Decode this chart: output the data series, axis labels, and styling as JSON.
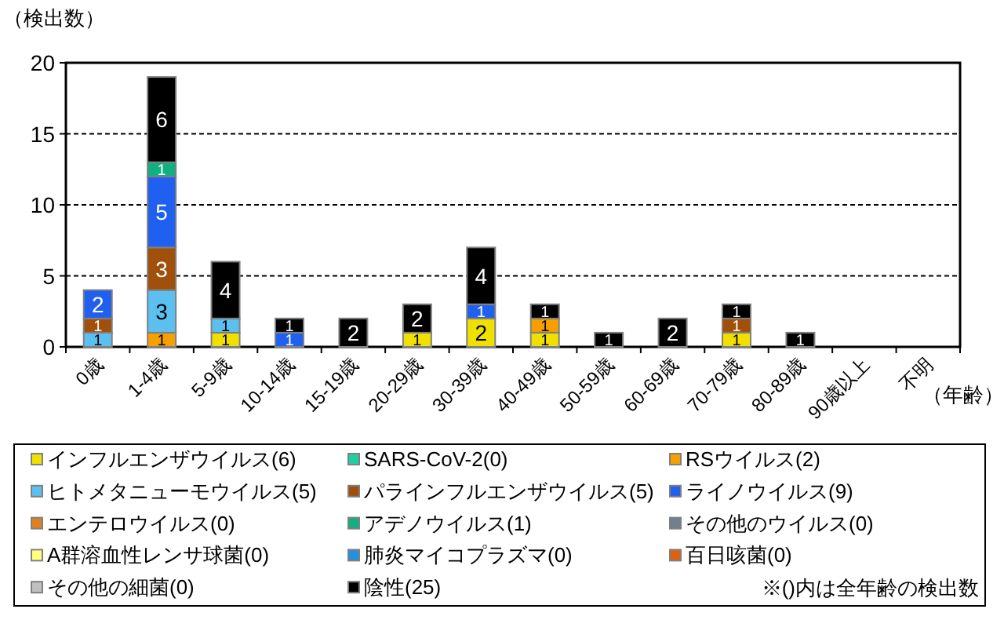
{
  "chart_data": {
    "type": "bar",
    "stacked": true,
    "ylabel": "（検出数）",
    "xlabel": "（年齢）",
    "categories": [
      "0歳",
      "1-4歳",
      "5-9歳",
      "10-14歳",
      "15-19歳",
      "20-29歳",
      "30-39歳",
      "40-49歳",
      "50-59歳",
      "60-69歳",
      "70-79歳",
      "80-89歳",
      "90歳以上",
      "不明"
    ],
    "series": [
      {
        "name": "インフルエンザウイルス(6)",
        "color": "#f0e000",
        "values": [
          0,
          0,
          1,
          0,
          0,
          1,
          2,
          1,
          0,
          0,
          1,
          0,
          0,
          0
        ],
        "value_labels": [
          null,
          null,
          "1",
          null,
          null,
          "1",
          "2",
          "1",
          null,
          null,
          "1",
          null,
          null,
          null
        ]
      },
      {
        "name": "SARS-CoV-2(0)",
        "color": "#20d0a0",
        "values": [
          0,
          0,
          0,
          0,
          0,
          0,
          0,
          0,
          0,
          0,
          0,
          0,
          0,
          0
        ]
      },
      {
        "name": "RSウイルス(2)",
        "color": "#f5a000",
        "values": [
          0,
          1,
          0,
          0,
          0,
          0,
          0,
          1,
          0,
          0,
          0,
          0,
          0,
          0
        ],
        "value_labels": [
          null,
          "1",
          null,
          null,
          null,
          null,
          null,
          "1",
          null,
          null,
          null,
          null,
          null,
          null
        ]
      },
      {
        "name": "ヒトメタニューモウイルス(5)",
        "color": "#5bc0f0",
        "values": [
          1,
          3,
          1,
          0,
          0,
          0,
          0,
          0,
          0,
          0,
          0,
          0,
          0,
          0
        ],
        "value_labels": [
          "1",
          "3",
          "1",
          null,
          null,
          null,
          null,
          null,
          null,
          null,
          null,
          null,
          null,
          null
        ]
      },
      {
        "name": "パラインフルエンザウイルス(5)",
        "color": "#a0500a",
        "values": [
          1,
          3,
          0,
          0,
          0,
          0,
          0,
          0,
          0,
          0,
          1,
          0,
          0,
          0
        ],
        "value_labels": [
          "1",
          "3",
          null,
          null,
          null,
          null,
          null,
          null,
          null,
          null,
          "1",
          null,
          null,
          null
        ]
      },
      {
        "name": "ライノウイルス(9)",
        "color": "#2060f0",
        "values": [
          2,
          5,
          0,
          1,
          0,
          0,
          1,
          0,
          0,
          0,
          0,
          0,
          0,
          0
        ],
        "value_labels": [
          "2",
          "5",
          null,
          "1",
          null,
          null,
          "1",
          null,
          null,
          null,
          null,
          null,
          null,
          null
        ]
      },
      {
        "name": "エンテロウイルス(0)",
        "color": "#e08020",
        "values": [
          0,
          0,
          0,
          0,
          0,
          0,
          0,
          0,
          0,
          0,
          0,
          0,
          0,
          0
        ]
      },
      {
        "name": "アデノウイルス(1)",
        "color": "#10b080",
        "values": [
          0,
          1,
          0,
          0,
          0,
          0,
          0,
          0,
          0,
          0,
          0,
          0,
          0,
          0
        ],
        "value_labels": [
          null,
          "1",
          null,
          null,
          null,
          null,
          null,
          null,
          null,
          null,
          null,
          null,
          null,
          null
        ]
      },
      {
        "name": "その他のウイルス(0)",
        "color": "#708090",
        "values": [
          0,
          0,
          0,
          0,
          0,
          0,
          0,
          0,
          0,
          0,
          0,
          0,
          0,
          0
        ]
      },
      {
        "name": "A群溶血性レンサ球菌(0)",
        "color": "#ffff80",
        "values": [
          0,
          0,
          0,
          0,
          0,
          0,
          0,
          0,
          0,
          0,
          0,
          0,
          0,
          0
        ]
      },
      {
        "name": "肺炎マイコプラズマ(0)",
        "color": "#2090e0",
        "values": [
          0,
          0,
          0,
          0,
          0,
          0,
          0,
          0,
          0,
          0,
          0,
          0,
          0,
          0
        ]
      },
      {
        "name": "百日咳菌(0)",
        "color": "#e06010",
        "values": [
          0,
          0,
          0,
          0,
          0,
          0,
          0,
          0,
          0,
          0,
          0,
          0,
          0,
          0
        ]
      },
      {
        "name": "その他の細菌(0)",
        "color": "#c0c0c0",
        "values": [
          0,
          0,
          0,
          0,
          0,
          0,
          0,
          0,
          0,
          0,
          0,
          0,
          0,
          0
        ]
      },
      {
        "name": "陰性(25)",
        "color": "#000000",
        "values": [
          0,
          6,
          4,
          1,
          2,
          2,
          4,
          1,
          1,
          2,
          1,
          1,
          0,
          0
        ],
        "value_labels": [
          null,
          "6",
          "4",
          "1",
          "2",
          "2",
          "4",
          "1",
          "1",
          "2",
          "1",
          "1",
          null,
          null
        ]
      }
    ],
    "ylim": [
      0,
      20
    ],
    "yticks": [
      0,
      5,
      10,
      15,
      20
    ],
    "grid": "y",
    "legend": "bottom",
    "annotations": [
      "※()内は全年齢の検出数"
    ]
  }
}
